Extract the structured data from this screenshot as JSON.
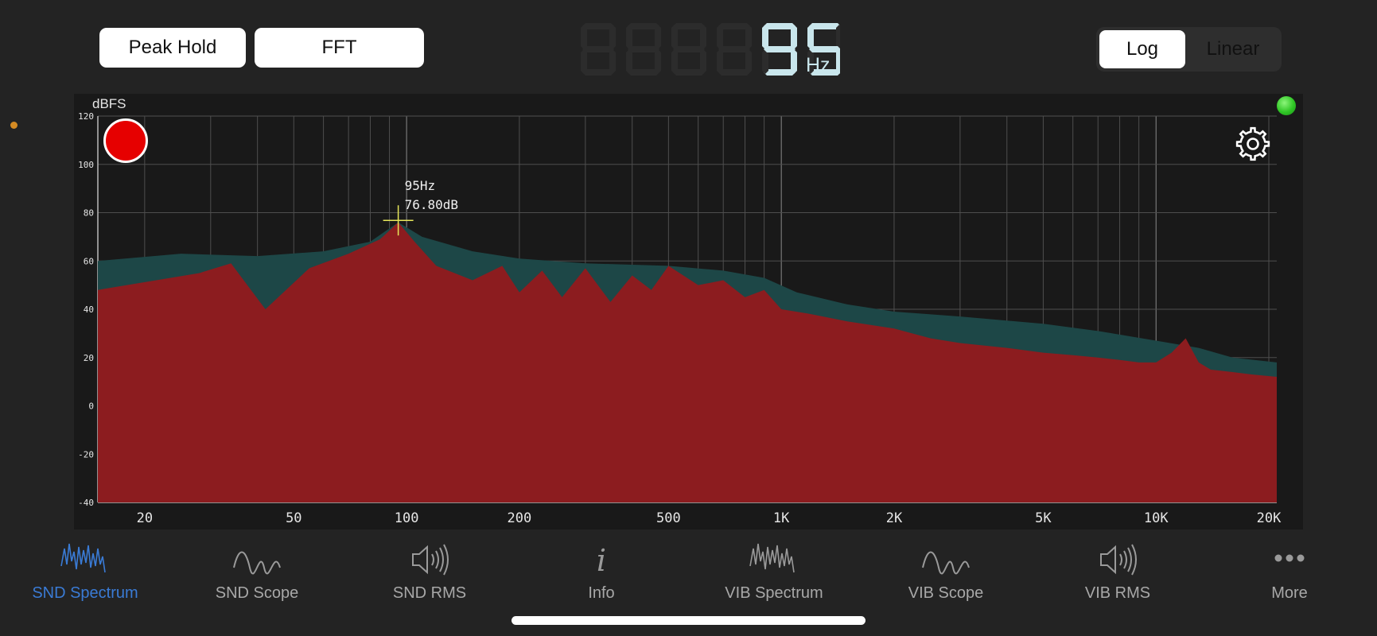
{
  "toolbar": {
    "peak_hold_label": "Peak Hold",
    "fft_label": "FFT"
  },
  "frequency_readout": {
    "value": "95",
    "unit": "Hz"
  },
  "scale_toggle": {
    "options": [
      "Log",
      "Linear"
    ],
    "selected": "Log"
  },
  "colors": {
    "spectrum_fill": "#8c1c1f",
    "peak_hold_fill": "#1d4747",
    "cursor": "#e8e85a",
    "record": "#e60000",
    "led": "#2fc625",
    "active_tab": "#3a7bd5"
  },
  "chart_data": {
    "type": "area",
    "x_scale": "log",
    "xlim": [
      15,
      21000
    ],
    "ylim": [
      -40,
      120
    ],
    "ylabel": "dBFS",
    "y_ticks": [
      "120",
      "100",
      "80",
      "60",
      "40",
      "20",
      "0",
      "-20",
      "-40"
    ],
    "x_tick_labels": [
      {
        "label": "20",
        "value": 20
      },
      {
        "label": "50",
        "value": 50
      },
      {
        "label": "100",
        "value": 100
      },
      {
        "label": "200",
        "value": 200
      },
      {
        "label": "500",
        "value": 500
      },
      {
        "label": "1K",
        "value": 1000
      },
      {
        "label": "2K",
        "value": 2000
      },
      {
        "label": "5K",
        "value": 5000
      },
      {
        "label": "10K",
        "value": 10000
      },
      {
        "label": "20K",
        "value": 20000
      }
    ],
    "grid": true,
    "marker": {
      "freq": 95,
      "db": 76.8,
      "label_freq": "95Hz",
      "label_db": "76.80dB"
    },
    "series": [
      {
        "role": "peak-hold",
        "x": [
          15,
          25,
          40,
          60,
          80,
          95,
          110,
          150,
          200,
          300,
          500,
          700,
          900,
          1100,
          1500,
          2000,
          3000,
          5000,
          7000,
          10000,
          13000,
          16000,
          21000
        ],
        "values": [
          60,
          63,
          62,
          64,
          68,
          76,
          70,
          64,
          61,
          59,
          58,
          56,
          53,
          47,
          42,
          39,
          37,
          34,
          31,
          27,
          24,
          20,
          18
        ]
      },
      {
        "role": "spectrum",
        "x": [
          15,
          28,
          34,
          42,
          55,
          70,
          85,
          95,
          105,
          120,
          150,
          180,
          200,
          230,
          260,
          300,
          350,
          400,
          450,
          500,
          600,
          700,
          800,
          900,
          1000,
          1200,
          1500,
          2000,
          2500,
          3000,
          4000,
          5000,
          6000,
          7000,
          8000,
          9000,
          10000,
          11000,
          12000,
          13000,
          14000,
          16000,
          18000,
          21000
        ],
        "values": [
          48,
          55,
          59,
          40,
          57,
          63,
          69,
          76,
          68,
          58,
          52,
          58,
          47,
          56,
          45,
          57,
          43,
          54,
          48,
          58,
          50,
          52,
          45,
          48,
          40,
          38,
          35,
          32,
          28,
          26,
          24,
          22,
          21,
          20,
          19,
          18,
          18,
          22,
          28,
          18,
          15,
          14,
          13,
          12
        ]
      }
    ]
  },
  "tabs": [
    {
      "label": "SND Spectrum",
      "icon": "waveform-icon",
      "active": true
    },
    {
      "label": "SND Scope",
      "icon": "sine-wave-icon",
      "active": false
    },
    {
      "label": "SND RMS",
      "icon": "speaker-icon",
      "active": false
    },
    {
      "label": "Info",
      "icon": "info-icon",
      "active": false
    },
    {
      "label": "VIB Spectrum",
      "icon": "waveform-icon",
      "active": false
    },
    {
      "label": "VIB Scope",
      "icon": "sine-wave-icon",
      "active": false
    },
    {
      "label": "VIB RMS",
      "icon": "speaker-icon",
      "active": false
    },
    {
      "label": "More",
      "icon": "ellipsis-icon",
      "active": false
    }
  ]
}
